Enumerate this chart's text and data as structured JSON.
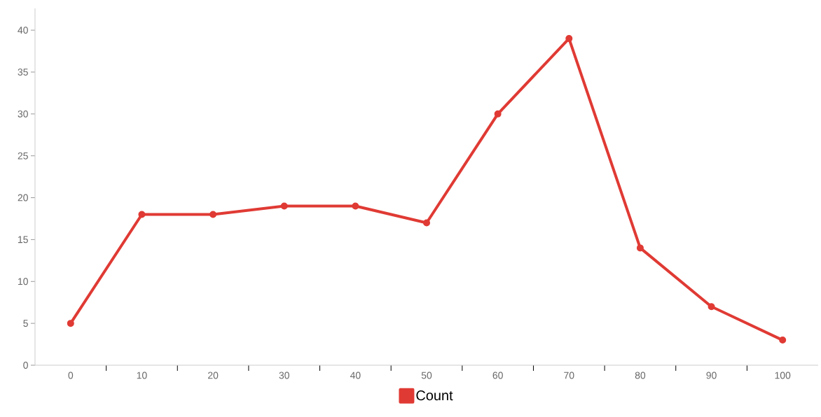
{
  "chart_data": {
    "type": "line",
    "categories": [
      "0",
      "10",
      "20",
      "30",
      "40",
      "50",
      "60",
      "70",
      "80",
      "90",
      "100"
    ],
    "series": [
      {
        "name": "Count",
        "color": "#e03a34",
        "values": [
          5,
          18,
          18,
          19,
          19,
          17,
          30,
          39,
          14,
          7,
          3
        ]
      }
    ],
    "ylim": [
      0,
      42.6
    ],
    "yticks": [
      0,
      5,
      10,
      15,
      20,
      25,
      30,
      35,
      40
    ],
    "marker": "circle",
    "line_style": "solid",
    "legend": "bottom"
  }
}
